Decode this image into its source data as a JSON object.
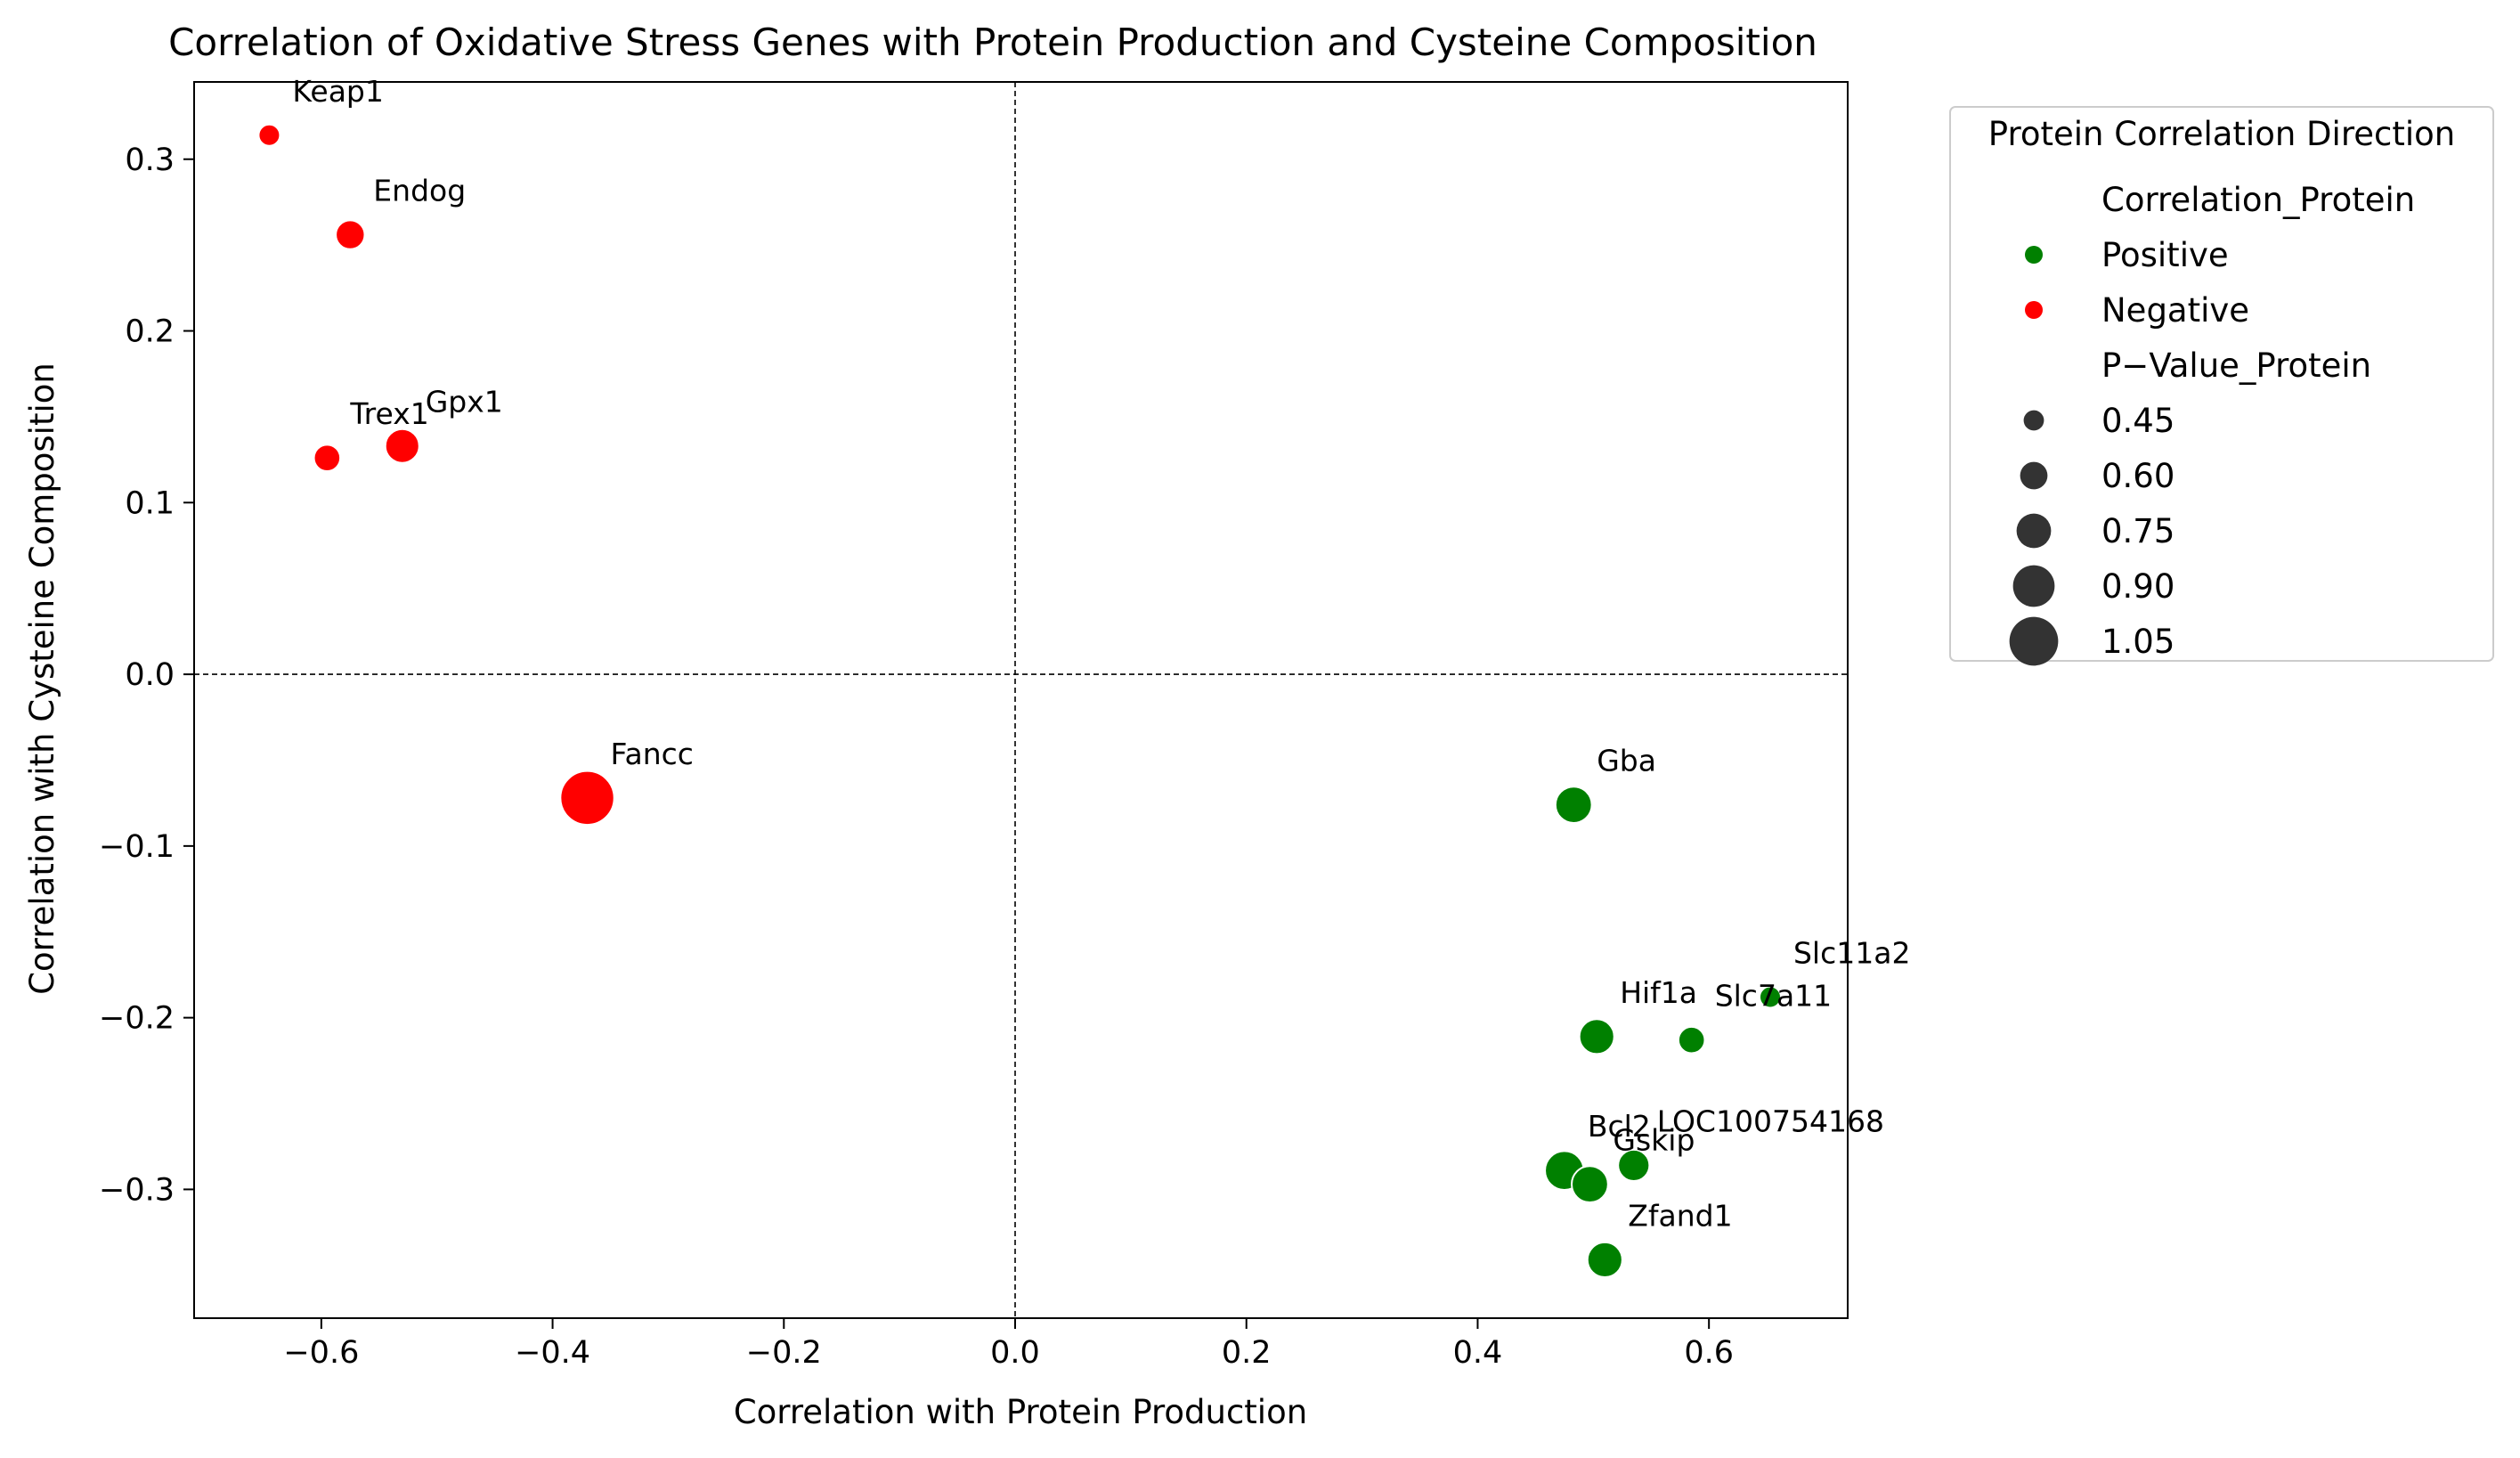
{
  "chart_data": {
    "type": "scatter",
    "title": "Correlation of Oxidative Stress Genes with Protein Production and Cysteine Composition",
    "xlabel": "Correlation with Protein Production",
    "ylabel": "Correlation with Cysteine Composition",
    "xlim": [
      -0.71,
      0.72
    ],
    "ylim": [
      -0.375,
      0.345
    ],
    "xticks": [
      -0.6,
      -0.4,
      -0.2,
      0.0,
      0.2,
      0.4,
      0.6
    ],
    "xtick_labels": [
      "−0.6",
      "−0.4",
      "−0.2",
      "0.0",
      "0.2",
      "0.4",
      "0.6"
    ],
    "yticks": [
      0.3,
      0.2,
      0.1,
      0.0,
      -0.1,
      -0.2,
      -0.3
    ],
    "ytick_labels": [
      "0.3",
      "0.2",
      "0.1",
      "0.0",
      "−0.1",
      "−0.2",
      "−0.3"
    ],
    "reference_lines": {
      "x": 0.0,
      "y": 0.0,
      "style": "dashed"
    },
    "grid": false,
    "colors": {
      "Positive": "#008000",
      "Negative": "#ff0000"
    },
    "points": [
      {
        "gene": "Keap1",
        "x": -0.645,
        "y": 0.314,
        "direction": "Negative",
        "p_value": 0.45
      },
      {
        "gene": "Endog",
        "x": -0.575,
        "y": 0.256,
        "direction": "Negative",
        "p_value": 0.6
      },
      {
        "gene": "Trex1",
        "x": -0.595,
        "y": 0.126,
        "direction": "Negative",
        "p_value": 0.55
      },
      {
        "gene": "Gpx1",
        "x": -0.53,
        "y": 0.133,
        "direction": "Negative",
        "p_value": 0.7
      },
      {
        "gene": "Fancc",
        "x": -0.37,
        "y": -0.072,
        "direction": "Negative",
        "p_value": 1.1
      },
      {
        "gene": "Gba",
        "x": 0.483,
        "y": -0.076,
        "direction": "Positive",
        "p_value": 0.75
      },
      {
        "gene": "Slc11a2",
        "x": 0.653,
        "y": -0.188,
        "direction": "Positive",
        "p_value": 0.45
      },
      {
        "gene": "Slc7a11",
        "x": 0.585,
        "y": -0.213,
        "direction": "Positive",
        "p_value": 0.55
      },
      {
        "gene": "Hif1a",
        "x": 0.503,
        "y": -0.211,
        "direction": "Positive",
        "p_value": 0.72
      },
      {
        "gene": "LOC100754168",
        "x": 0.535,
        "y": -0.286,
        "direction": "Positive",
        "p_value": 0.65
      },
      {
        "gene": "Bcl2",
        "x": 0.475,
        "y": -0.289,
        "direction": "Positive",
        "p_value": 0.8
      },
      {
        "gene": "Gskip",
        "x": 0.497,
        "y": -0.297,
        "direction": "Positive",
        "p_value": 0.75
      },
      {
        "gene": "Zfand1",
        "x": 0.51,
        "y": -0.341,
        "direction": "Positive",
        "p_value": 0.72
      }
    ],
    "legend": {
      "placement": "outside-right-top",
      "title": "Protein Correlation Direction",
      "hue_title": "Correlation_Protein",
      "hue_entries": [
        "Positive",
        "Negative"
      ],
      "size_title": "P−Value_Protein",
      "size_entries": [
        {
          "label": "0.45",
          "value": 0.45
        },
        {
          "label": "0.60",
          "value": 0.6
        },
        {
          "label": "0.75",
          "value": 0.75
        },
        {
          "label": "0.90",
          "value": 0.9
        },
        {
          "label": "1.05",
          "value": 1.05
        }
      ]
    }
  }
}
